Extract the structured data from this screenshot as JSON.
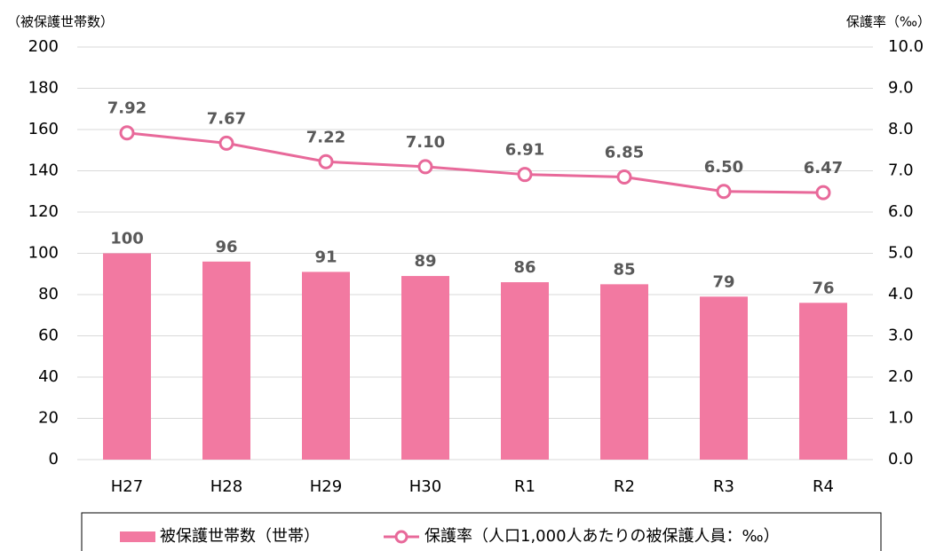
{
  "chart_data": {
    "type": "bar-line",
    "ylabel": "（被保護世帯数）",
    "y2label": "保護率（‰）",
    "categories": [
      "H27",
      "H28",
      "H29",
      "H30",
      "R1",
      "R2",
      "R3",
      "R4"
    ],
    "series": [
      {
        "name": "被保護世帯数（世帯）",
        "type": "bar",
        "color": "#f279a1",
        "values": [
          100,
          96,
          91,
          89,
          86,
          85,
          79,
          76
        ]
      },
      {
        "name": "保護率（人口1,000人あたりの被保護人員：‰）",
        "type": "line",
        "axis": "y2",
        "color": "#e8699a",
        "values": [
          7.92,
          7.67,
          7.22,
          7.1,
          6.91,
          6.85,
          6.5,
          6.47
        ],
        "value_labels": [
          "7.92",
          "7.67",
          "7.22",
          "7.10",
          "6.91",
          "6.85",
          "6.50",
          "6.47"
        ]
      }
    ],
    "ylim": [
      0,
      200
    ],
    "yticks": [
      0,
      20,
      40,
      60,
      80,
      100,
      120,
      140,
      160,
      180,
      200
    ],
    "y2lim": [
      0,
      10
    ],
    "y2ticks": [
      {
        "value": 0,
        "label": "0.0"
      },
      {
        "value": 1,
        "label": "1.0"
      },
      {
        "value": 2,
        "label": "2.0"
      },
      {
        "value": 3,
        "label": "3.0"
      },
      {
        "value": 4,
        "label": "4.0"
      },
      {
        "value": 5,
        "label": "5.0"
      },
      {
        "value": 6,
        "label": "6.0"
      },
      {
        "value": 7,
        "label": "7.0"
      },
      {
        "value": 8,
        "label": "8.0"
      },
      {
        "value": 9,
        "label": "9.0"
      },
      {
        "value": 10,
        "label": "10.0"
      }
    ],
    "grid": true
  }
}
